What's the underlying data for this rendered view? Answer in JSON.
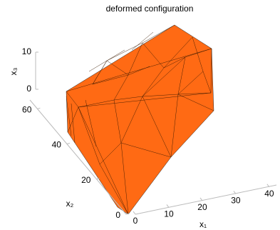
{
  "chart_data": {
    "type": "surface",
    "title": "deformed configuration",
    "x_label": "x₁",
    "y_label": "x₂",
    "z_label": "x₃",
    "xlim": [
      0,
      43
    ],
    "xticks": [
      0,
      10,
      20,
      30,
      40
    ],
    "ylim": [
      0,
      65
    ],
    "yticks": [
      0,
      20,
      40,
      60
    ],
    "zlim": [
      0,
      10
    ],
    "zticks": [
      0,
      10
    ],
    "color": "#ff6a14"
  }
}
